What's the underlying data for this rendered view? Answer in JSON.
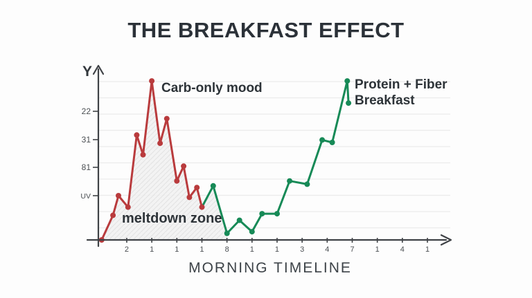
{
  "title": "THE BREAKFAST EFFECT",
  "x_axis_title": "MORNING TIMELINE",
  "y_axis_letter": "Y",
  "annotations": {
    "carb_label": "Carb-only mood",
    "protein_label_line1": "Protein + Fiber",
    "protein_label_line2": "Breakfast",
    "meltdown_label": "meltdown zone"
  },
  "colors": {
    "carb_line": "#b93b3d",
    "protein_line": "#178a57",
    "title_text": "#2b3138",
    "axis": "#3f4246",
    "tick_text": "#4a4e52",
    "gridline": "#ececec",
    "meltdown_fill": "#f2f2f2",
    "meltdown_hatch": "#e0e0e0"
  },
  "chart_data": {
    "type": "line",
    "title": "THE BREAKFAST EFFECT",
    "xlabel": "MORNING TIMELINE",
    "ylabel": "Y",
    "grid": "horizontal-light-gridlines",
    "legend_position": "inline-annotations-near-lines",
    "xlim": [
      0,
      14
    ],
    "ylim": [
      0,
      105
    ],
    "x_tick_labels": [
      "2",
      "1",
      "1",
      "1",
      "8",
      "1",
      "1",
      "3",
      "4",
      "7",
      "1",
      "4",
      "1"
    ],
    "y_ticks": [
      {
        "label": "UV",
        "value": 27
      },
      {
        "label": "81",
        "value": 44.3
      },
      {
        "label": "31",
        "value": 61.2
      },
      {
        "label": "22",
        "value": 78.5
      }
    ],
    "series": [
      {
        "name": "Carb-only mood",
        "color": "#b93b3d",
        "points": [
          [
            0,
            0
          ],
          [
            0.45,
            15
          ],
          [
            0.67,
            27
          ],
          [
            1.05,
            20
          ],
          [
            1.4,
            64
          ],
          [
            1.65,
            52
          ],
          [
            2.0,
            97
          ],
          [
            2.33,
            59
          ],
          [
            2.6,
            74
          ],
          [
            3.0,
            36
          ],
          [
            3.27,
            45
          ],
          [
            3.5,
            26
          ],
          [
            3.8,
            32
          ],
          [
            4.0,
            20
          ]
        ]
      },
      {
        "name": "Protein + Fiber Breakfast",
        "color": "#178a57",
        "points": [
          [
            4.0,
            20
          ],
          [
            4.45,
            33
          ],
          [
            5.0,
            4
          ],
          [
            5.5,
            12
          ],
          [
            6.0,
            5
          ],
          [
            6.4,
            16
          ],
          [
            7.0,
            16
          ],
          [
            7.5,
            36
          ],
          [
            8.2,
            34
          ],
          [
            8.8,
            61
          ],
          [
            9.2,
            59.5
          ],
          [
            9.8,
            97
          ],
          [
            9.85,
            83.5
          ]
        ]
      }
    ],
    "shaded_region": {
      "label": "meltdown zone",
      "description": "hatched light-gray area under Carb-only mood line",
      "x_range": [
        0,
        5.0
      ]
    }
  }
}
